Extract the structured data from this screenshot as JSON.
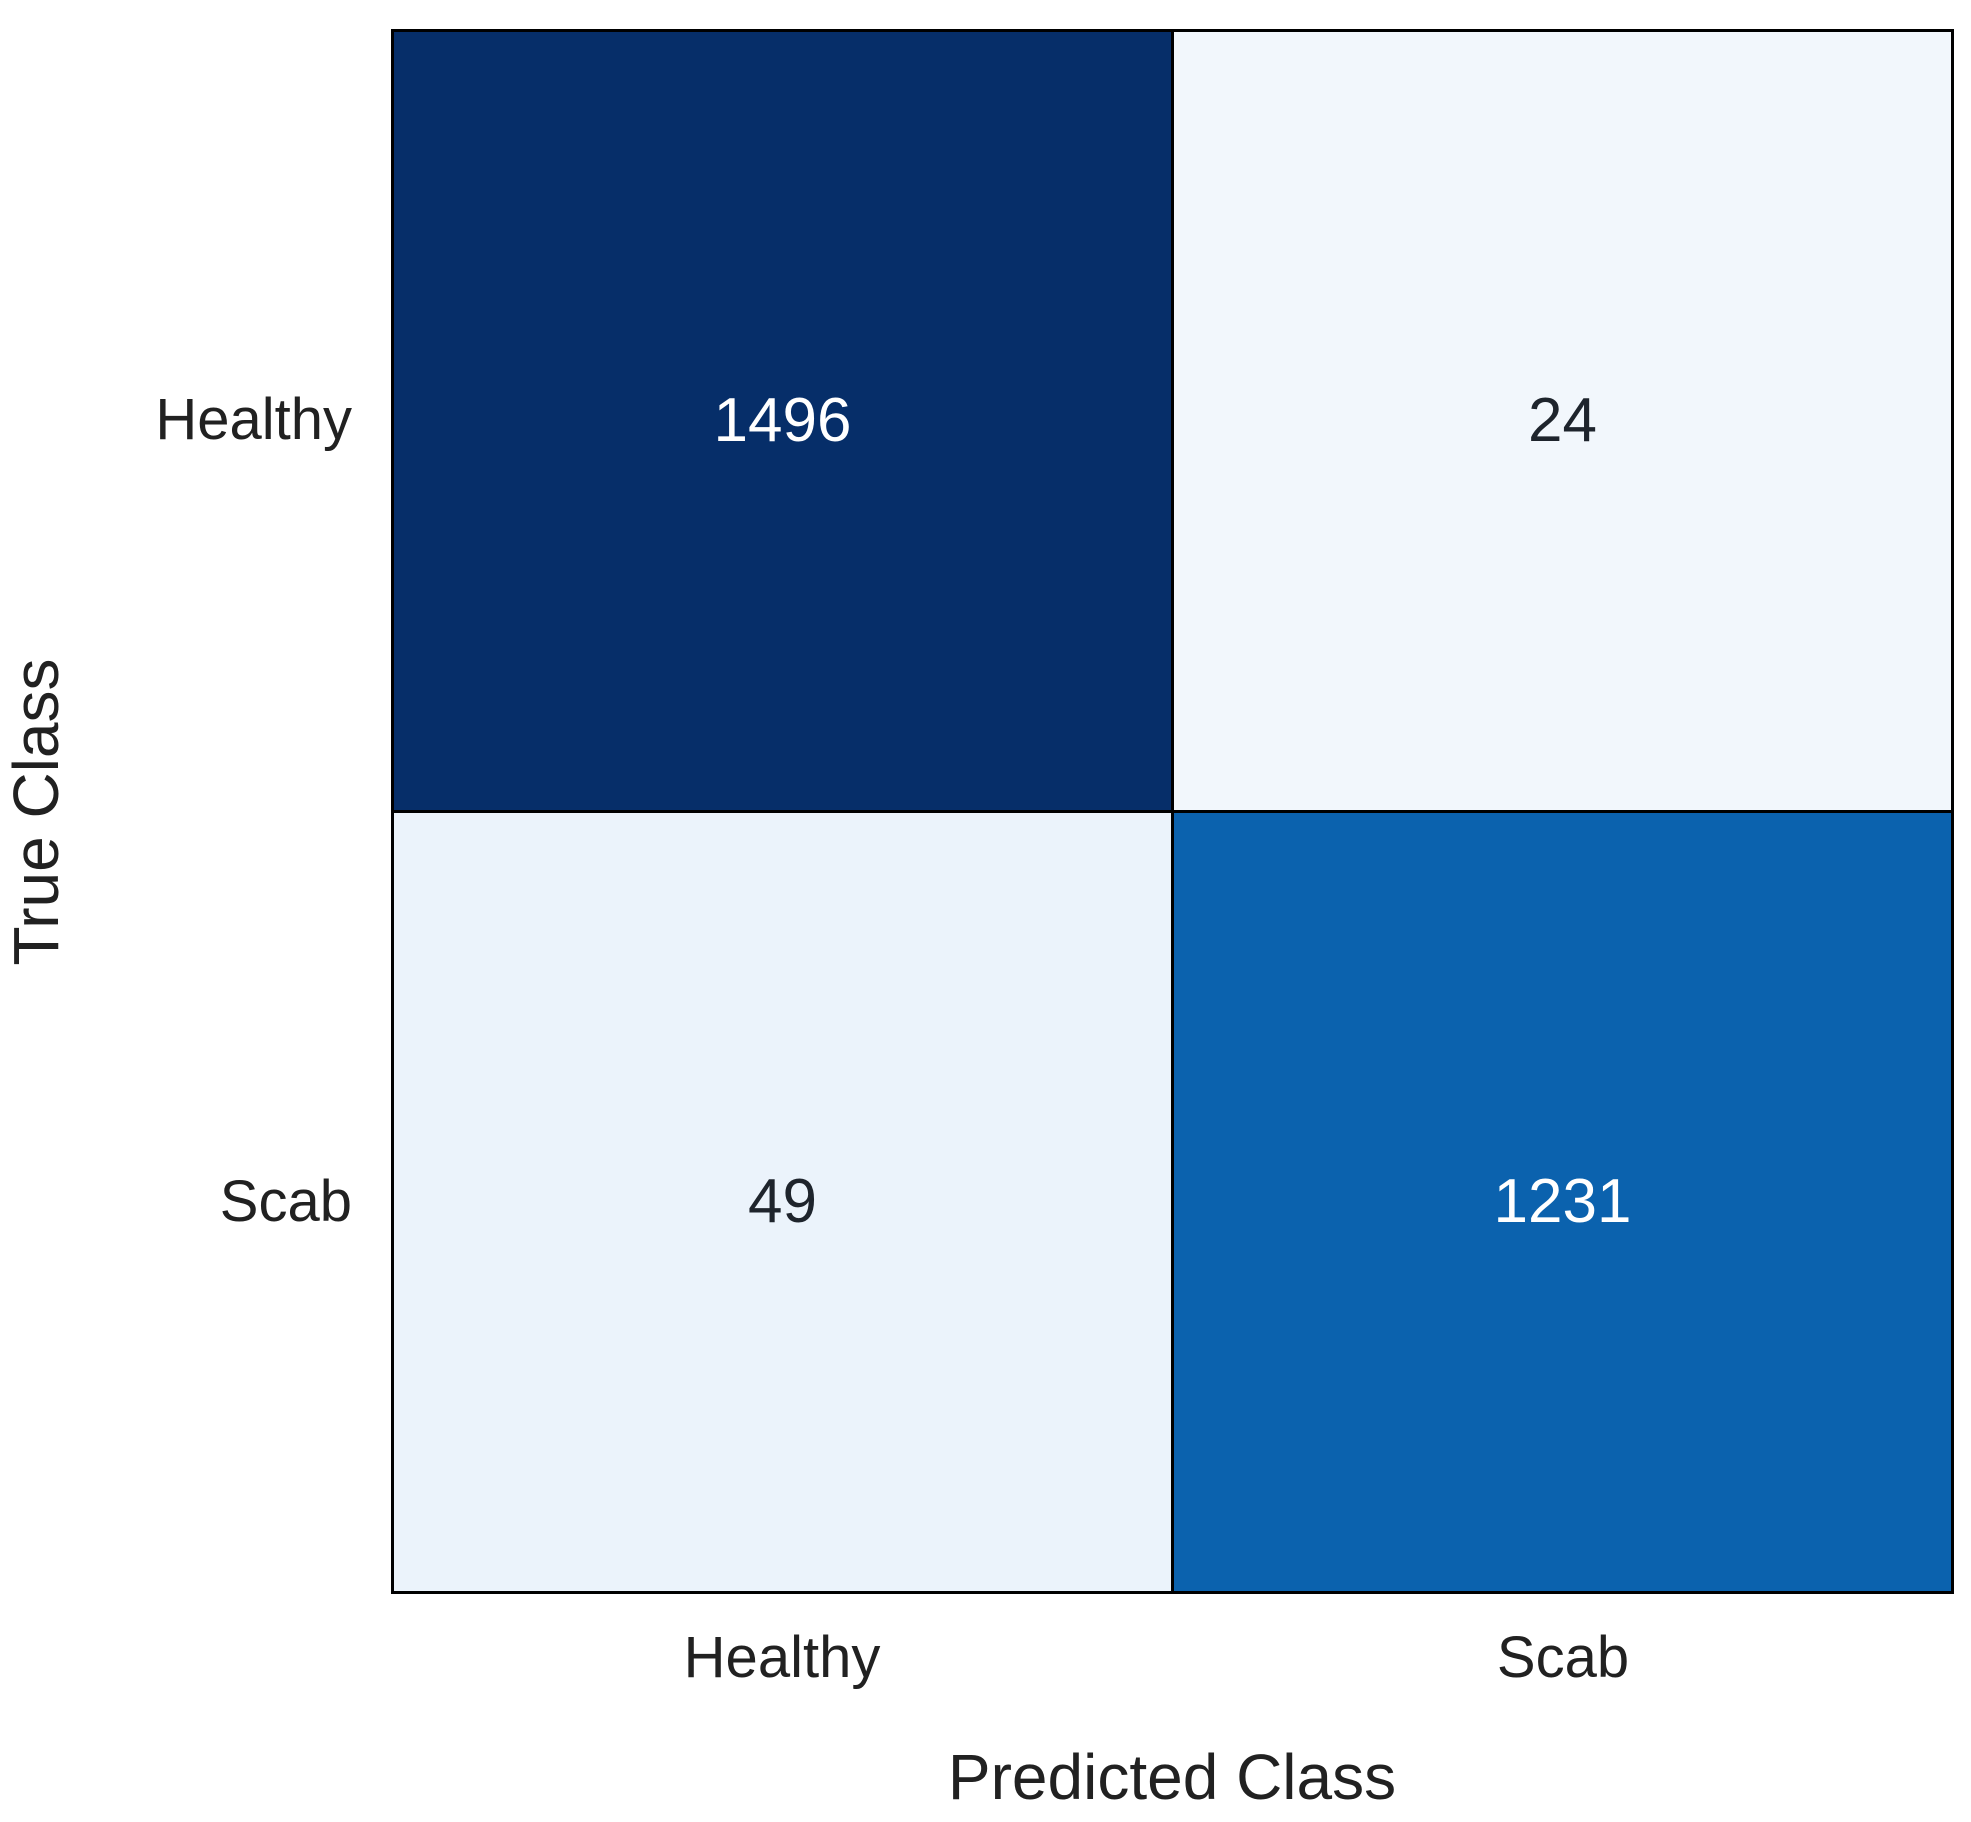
{
  "chart_data": {
    "type": "heatmap",
    "subtype": "confusion-matrix",
    "title": "",
    "xlabel": "Predicted Class",
    "ylabel": "True Class",
    "x_categories": [
      "Healthy",
      "Scab"
    ],
    "y_categories": [
      "Healthy",
      "Scab"
    ],
    "matrix": [
      [
        1496,
        24
      ],
      [
        49,
        1231
      ]
    ],
    "colormap": "Blues",
    "grid_color": "#000000",
    "background_color": "#ffffff",
    "text_color": "#212121",
    "cells": [
      {
        "true_class": "Healthy",
        "predicted_class": "Healthy",
        "value": "1496",
        "bg": "#062e69",
        "fg": "#ffffff"
      },
      {
        "true_class": "Healthy",
        "predicted_class": "Scab",
        "value": "24",
        "bg": "#f2f7fc",
        "fg": "#1e242c"
      },
      {
        "true_class": "Scab",
        "predicted_class": "Healthy",
        "value": "49",
        "bg": "#ebf3fb",
        "fg": "#1e242c"
      },
      {
        "true_class": "Scab",
        "predicted_class": "Scab",
        "value": "1231",
        "bg": "#0b62ae",
        "fg": "#ffffff"
      }
    ]
  }
}
